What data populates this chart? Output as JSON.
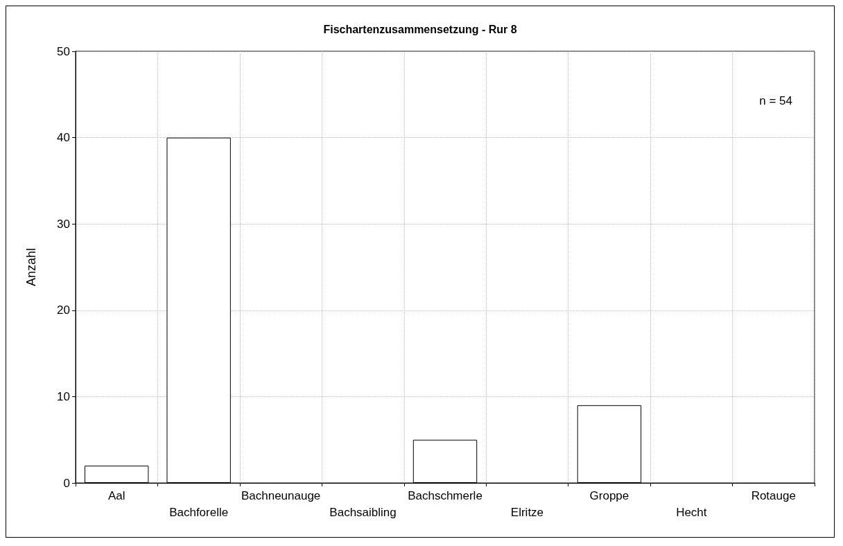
{
  "chart_data": {
    "type": "bar",
    "title": "Fischartenzusammensetzung - Rur 8",
    "ylabel": "Anzahl",
    "categories": [
      "Aal",
      "Bachforelle",
      "Bachneunauge",
      "Bachsaibling",
      "Bachschmerle",
      "Elritze",
      "Groppe",
      "Hecht",
      "Rotauge"
    ],
    "values": [
      2,
      40,
      0,
      0,
      5,
      0,
      9,
      0,
      0
    ],
    "color": "#ffffff",
    "ylim": [
      0,
      50
    ],
    "yticks": [
      0,
      10,
      20,
      30,
      40,
      50
    ],
    "grid": true,
    "annotations": [
      "n = 54"
    ]
  }
}
